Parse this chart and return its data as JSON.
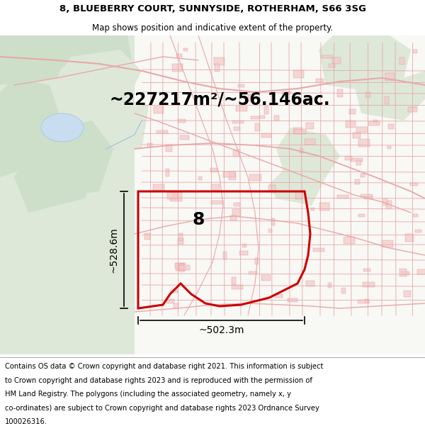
{
  "title_line1": "8, BLUEBERRY COURT, SUNNYSIDE, ROTHERHAM, S66 3SG",
  "title_line2": "Map shows position and indicative extent of the property.",
  "area_text": "~227217m²/~56.146ac.",
  "label_8": "8",
  "dim_vertical": "~528.6m",
  "dim_horizontal": "~502.3m",
  "footer_lines": [
    "Contains OS data © Crown copyright and database right 2021. This information is subject",
    "to Crown copyright and database rights 2023 and is reproduced with the permission of",
    "HM Land Registry. The polygons (including the associated geometry, namely x, y",
    "co-ordinates) are subject to Crown copyright and database rights 2023 Ordnance Survey",
    "100026316."
  ],
  "bg_white": "#ffffff",
  "bg_map": "#f8f8f5",
  "green_light": "#dde8d8",
  "green_med": "#cddfc8",
  "green_dark": "#c5d8be",
  "road_pink": "#e8a8a8",
  "road_red": "#d04040",
  "building_fill": "#f5c8c8",
  "building_edge": "#d08080",
  "water_fill": "#c8ddf0",
  "property_color": "#cc0000",
  "dim_color": "#000000",
  "title_fs": 9.5,
  "subtitle_fs": 8.5,
  "area_fs": 17,
  "label_fs": 18,
  "dim_fs": 10,
  "footer_fs": 7.2
}
